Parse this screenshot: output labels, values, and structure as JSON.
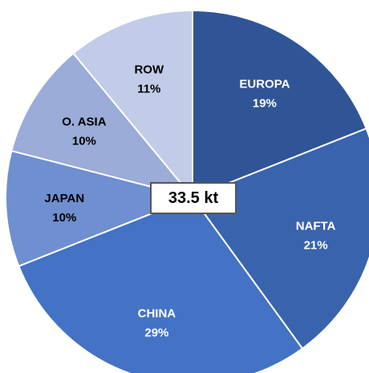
{
  "chart_data": {
    "type": "pie",
    "title": "",
    "center_label": "33.5 kt",
    "start_angle_deg": 0,
    "direction": "clockwise",
    "slices": [
      {
        "label": "EUROPA",
        "percent_label": "19%",
        "value": 19,
        "color": "#2f5597",
        "text_color": "#ffffff"
      },
      {
        "label": "NAFTA",
        "percent_label": "21%",
        "value": 21,
        "color": "#3a63ad",
        "text_color": "#ffffff"
      },
      {
        "label": "CHINA",
        "percent_label": "29%",
        "value": 29,
        "color": "#4472c4",
        "text_color": "#ffffff"
      },
      {
        "label": "JAPAN",
        "percent_label": "10%",
        "value": 10,
        "color": "#6f8fd0",
        "text_color": "#000000"
      },
      {
        "label": "O. ASIA",
        "percent_label": "10%",
        "value": 10,
        "color": "#9aacd7",
        "text_color": "#000000"
      },
      {
        "label": "ROW",
        "percent_label": "11%",
        "value": 11,
        "color": "#c2cce8",
        "text_color": "#000000"
      }
    ]
  }
}
